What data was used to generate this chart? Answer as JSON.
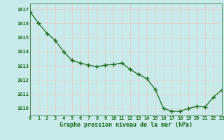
{
  "x": [
    0,
    1,
    2,
    3,
    4,
    5,
    6,
    7,
    8,
    9,
    10,
    11,
    12,
    13,
    14,
    15,
    16,
    17,
    18,
    19,
    20,
    21,
    22,
    23
  ],
  "y": [
    1016.8,
    1016.0,
    1015.3,
    1014.8,
    1014.0,
    1013.4,
    1013.2,
    1013.05,
    1012.95,
    1013.05,
    1013.1,
    1013.2,
    1012.75,
    1012.4,
    1012.1,
    1011.35,
    1010.0,
    1009.8,
    1009.8,
    1010.0,
    1010.15,
    1010.1,
    1010.8,
    1011.3
  ],
  "line_color": "#1a6b1a",
  "marker_color": "#1a6b1a",
  "bg_color": "#c8eaea",
  "grid_color": "#d0e8e8",
  "axis_label_color": "#1a6b1a",
  "tick_label_color": "#1a6b1a",
  "xlabel": "Graphe pression niveau de la mer (hPa)",
  "ylim": [
    1009.5,
    1017.4
  ],
  "yticks": [
    1010,
    1011,
    1012,
    1013,
    1014,
    1015,
    1016,
    1017
  ],
  "xlim": [
    0,
    23
  ],
  "xticks": [
    0,
    1,
    2,
    3,
    4,
    5,
    6,
    7,
    8,
    9,
    10,
    11,
    12,
    13,
    14,
    15,
    16,
    17,
    18,
    19,
    20,
    21,
    22,
    23
  ]
}
